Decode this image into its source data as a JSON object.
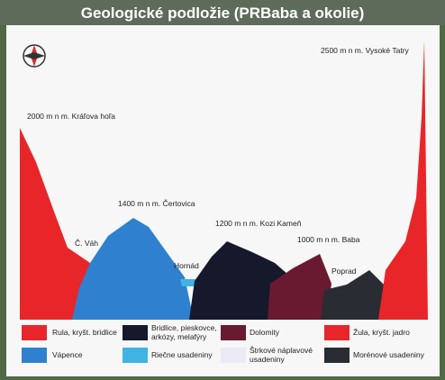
{
  "header": {
    "title": "Geologické podložie (PRBaba a okolie)"
  },
  "labels": [
    "2500 m n m. Vysoké Tatry",
    "2000 m n m. Kráľova hoľa",
    "Č. Váh",
    "1400 m n m. Čertovica",
    "Hornád",
    "1200 m n m. Kozi Kameň",
    "1000 m n m. Baba",
    "Poprad"
  ],
  "legend": [
    {
      "lines": [
        "Rula, kryšt. bridlice"
      ]
    },
    {
      "lines": [
        "Bridlice, pieskovce,",
        "arkózy, melafýry"
      ]
    },
    {
      "lines": [
        "Dolomity"
      ]
    },
    {
      "lines": [
        "Žula, kryšt. jadro"
      ]
    },
    {
      "lines": [
        "Vápence"
      ]
    },
    {
      "lines": [
        "Riečne usadeniny"
      ]
    },
    {
      "lines": [
        "Štrkové náplavové",
        "usadeniny"
      ]
    },
    {
      "lines": [
        "Morénové usadeniny"
      ]
    }
  ]
}
